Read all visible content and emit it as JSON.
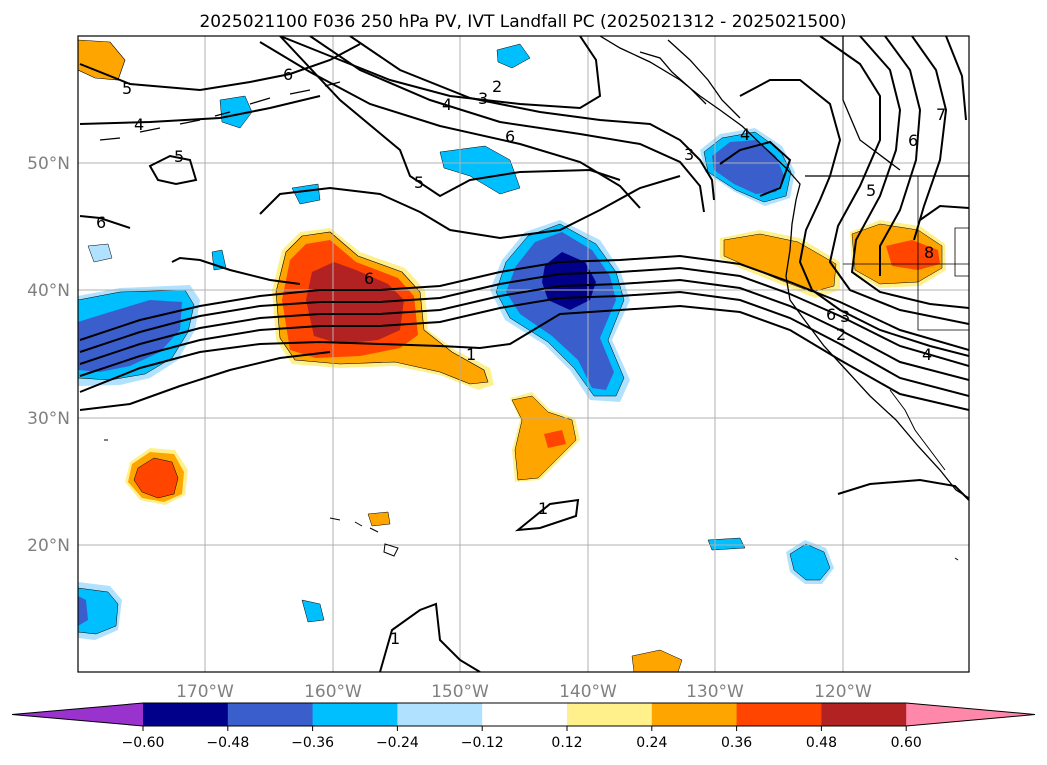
{
  "title": "2025021100 F036 250 hPa PV, IVT Landfall PC (2025021312 - 2025021500)",
  "map": {
    "lat_labels": [
      "50°N",
      "40°N",
      "30°N",
      "20°N"
    ],
    "lon_labels": [
      "170°W",
      "160°W",
      "150°W",
      "140°W",
      "130°W",
      "120°W"
    ]
  },
  "contour_labels": [
    "6",
    "2",
    "3",
    "4",
    "5",
    "4",
    "5",
    "6",
    "6",
    "5",
    "6",
    "3",
    "4",
    "7",
    "6",
    "5",
    "8",
    "6",
    "1",
    "3",
    "2",
    "4",
    "1",
    "1"
  ],
  "colorbar": {
    "ticks": [
      "−0.60",
      "−0.48",
      "−0.36",
      "−0.24",
      "−0.12",
      "0.12",
      "0.24",
      "0.36",
      "0.48",
      "0.60"
    ],
    "colors": [
      "#9a32cd",
      "#00008b",
      "#3a5fcd",
      "#00bfff",
      "#b0e2ff",
      "#ffffff",
      "#fff08c",
      "#ffa500",
      "#ff4500",
      "#b22222",
      "#ff88aa"
    ]
  }
}
